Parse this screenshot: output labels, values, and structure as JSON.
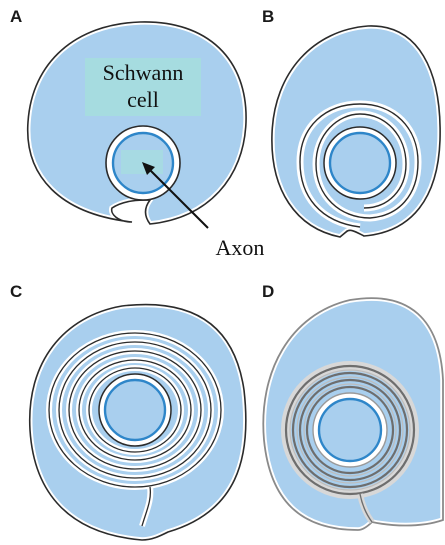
{
  "panels": [
    {
      "letter": "A"
    },
    {
      "letter": "B"
    },
    {
      "letter": "C"
    },
    {
      "letter": "D"
    }
  ],
  "labels": {
    "schwann_line1": "Schwann",
    "schwann_line2": "cell",
    "axon": "Axon"
  },
  "colors": {
    "cytoplasm": "#a9cfee",
    "axon_ring": "#2e86c9",
    "membrane": "#2b2b2b",
    "label_highlight": "#a6dce0",
    "myelin_dark": "#6e6e6e",
    "myelin_halo": "#d8d8d8",
    "background": "#ffffff"
  }
}
